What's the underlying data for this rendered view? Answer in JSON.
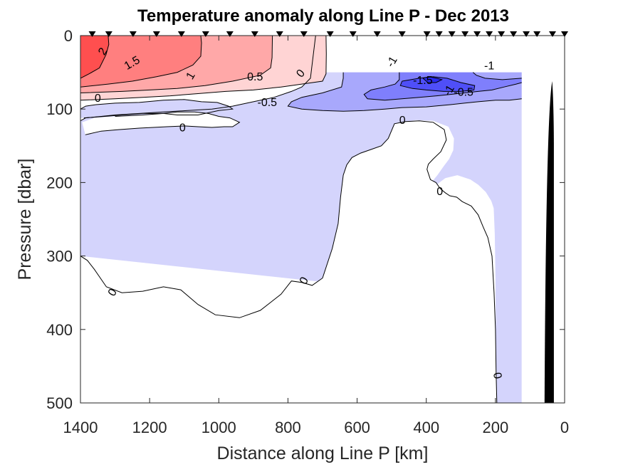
{
  "chart_data": {
    "type": "contourf",
    "title": "Temperature anomaly along Line P - Dec 2013",
    "xlabel": "Distance along Line P [km]",
    "ylabel": "Pressure [dbar]",
    "xlim": [
      1400,
      0
    ],
    "ylim": [
      500,
      0
    ],
    "x_reversed": true,
    "y_reversed": true,
    "xticks": [
      1400,
      1200,
      1000,
      800,
      600,
      400,
      200,
      0
    ],
    "xtick_labels": [
      "1400",
      "1200",
      "1000",
      "800",
      "600",
      "400",
      "200",
      "0"
    ],
    "yticks": [
      0,
      100,
      200,
      300,
      400,
      500
    ],
    "ytick_labels": [
      "0",
      "100",
      "200",
      "300",
      "400",
      "500"
    ],
    "grid": false,
    "contour_levels": [
      -2,
      -1.5,
      -1,
      -0.5,
      0,
      0.5,
      1,
      1.5,
      2
    ],
    "level_colors": {
      "gt_2": "#ff4f4f",
      "1.5_2": "#ff7f7f",
      "1_1.5": "#ffa8a8",
      "0.5_1": "#ffd4d4",
      "0_0.5": "#ffffff",
      "m0.5_0": "#d4d4fc",
      "m1_m0.5": "#a8a8fc",
      "m1.5_m1": "#7f7ffc",
      "m2_m1.5": "#4f4ff8",
      "lt_m2": "#2a2af0"
    },
    "data_extent_km": [
      1400,
      124
    ],
    "station_markers_km": [
      1366,
      1318,
      1248,
      1180,
      1108,
      1038,
      968,
      896,
      824,
      754,
      678,
      612,
      542,
      470,
      398,
      363,
      326,
      288,
      253,
      218,
      183,
      148,
      111,
      80,
      35,
      0
    ],
    "regions": [
      {
        "level": "m0.5_0",
        "points": [
          [
            1400,
            160
          ],
          [
            1384,
            148
          ],
          [
            1360,
            130
          ],
          [
            1300,
            116
          ],
          [
            1200,
            118
          ],
          [
            1100,
            121
          ],
          [
            1000,
            118
          ],
          [
            960,
            114
          ],
          [
            860,
            112
          ],
          [
            800,
            103
          ],
          [
            720,
            98
          ],
          [
            690,
            90
          ],
          [
            700,
            65
          ],
          [
            690,
            50
          ],
          [
            124,
            50
          ],
          [
            124,
            500
          ],
          [
            196,
            500
          ],
          [
            196,
            470
          ],
          [
            200,
            300
          ],
          [
            204,
            230
          ],
          [
            222,
            215
          ],
          [
            257,
            196
          ],
          [
            275,
            190
          ],
          [
            345,
            192
          ],
          [
            367,
            196
          ],
          [
            380,
            188
          ],
          [
            350,
            170
          ],
          [
            335,
            162
          ],
          [
            322,
            140
          ],
          [
            330,
            124
          ],
          [
            400,
            124
          ],
          [
            455,
            128
          ],
          [
            480,
            136
          ],
          [
            495,
            148
          ],
          [
            490,
            200
          ],
          [
            478,
            270
          ],
          [
            460,
            300
          ],
          [
            420,
            325
          ],
          [
            400,
            350
          ],
          [
            370,
            382
          ],
          [
            330,
            382
          ],
          [
            226,
            376
          ],
          [
            136,
            376
          ],
          [
            110,
            365
          ],
          [
            1400,
            0
          ]
        ]
      },
      {
        "level": "m0.5_0",
        "points": [
          [
            1400,
            300
          ],
          [
            1390,
            305
          ],
          [
            1370,
            320
          ],
          [
            1320,
            340
          ],
          [
            1280,
            346
          ],
          [
            1220,
            342
          ],
          [
            1160,
            334
          ],
          [
            1100,
            348
          ],
          [
            1050,
            374
          ],
          [
            980,
            382
          ],
          [
            880,
            373
          ],
          [
            800,
            357
          ],
          [
            740,
            338
          ],
          [
            740,
            330
          ],
          [
            790,
            320
          ],
          [
            840,
            300
          ],
          [
            880,
            260
          ],
          [
            890,
            230
          ],
          [
            900,
            200
          ],
          [
            920,
            178
          ],
          [
            940,
            140
          ],
          [
            1000,
            125
          ],
          [
            1060,
            125
          ],
          [
            1170,
            124
          ],
          [
            1200,
            126
          ],
          [
            1300,
            130
          ],
          [
            1360,
            132
          ],
          [
            1384,
            135
          ],
          [
            1400,
            150
          ]
        ]
      }
    ],
    "contour_labels": [
      {
        "text": "2",
        "km": 1334,
        "dbar": 22,
        "angle": -60
      },
      {
        "text": "1.5",
        "km": 1250,
        "dbar": 38,
        "angle": -30
      },
      {
        "text": "1",
        "km": 1080,
        "dbar": 55,
        "angle": -60
      },
      {
        "text": "0.5",
        "km": 895,
        "dbar": 57,
        "angle": 0
      },
      {
        "text": "0",
        "km": 762,
        "dbar": 52,
        "angle": -50
      },
      {
        "text": "0",
        "km": 1350,
        "dbar": 86,
        "angle": 0
      },
      {
        "text": "-0.5",
        "km": 860,
        "dbar": 92,
        "angle": 0
      },
      {
        "text": "-1",
        "km": 498,
        "dbar": 36,
        "angle": -60
      },
      {
        "text": "-1",
        "km": 218,
        "dbar": 42,
        "angle": 0
      },
      {
        "text": "-1.5",
        "km": 410,
        "dbar": 62,
        "angle": 0
      },
      {
        "text": "-1",
        "km": 333,
        "dbar": 75,
        "angle": -60
      },
      {
        "text": "-0.5",
        "km": 292,
        "dbar": 78,
        "angle": 0
      },
      {
        "text": "0",
        "km": 1105,
        "dbar": 126,
        "angle": 0
      },
      {
        "text": "0",
        "km": 469,
        "dbar": 116,
        "angle": 0
      },
      {
        "text": "0",
        "km": 361,
        "dbar": 213,
        "angle": 0
      },
      {
        "text": "0",
        "km": 1306,
        "dbar": 350,
        "angle": -60
      },
      {
        "text": "0",
        "km": 752,
        "dbar": 334,
        "angle": -60
      },
      {
        "text": "0",
        "km": 196,
        "dbar": 463,
        "angle": 80
      }
    ],
    "bathymetry": {
      "fill": "#000000",
      "points_km_dbar": [
        [
          58,
          500
        ],
        [
          56,
          380
        ],
        [
          54,
          250
        ],
        [
          50,
          160
        ],
        [
          46,
          110
        ],
        [
          40,
          67
        ],
        [
          35,
          61
        ],
        [
          33,
          80
        ],
        [
          32,
          150
        ],
        [
          0,
          150
        ],
        [
          0,
          500
        ]
      ]
    }
  }
}
